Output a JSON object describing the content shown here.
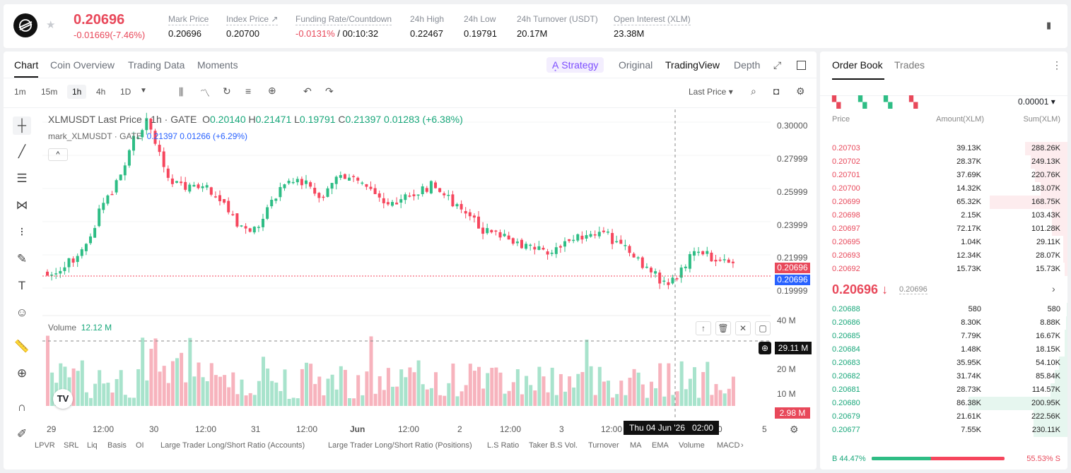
{
  "header": {
    "price": "0.20696",
    "change": "-0.01669(-7.46%)",
    "stats": [
      {
        "label": "Mark Price",
        "value": "0.20696"
      },
      {
        "label": "Index Price ↗",
        "value": "0.20700"
      },
      {
        "label": "Funding Rate/Countdown",
        "value": "-0.0131%",
        "value2": " / 00:10:32"
      },
      {
        "label": "24h High",
        "value": "0.22467"
      },
      {
        "label": "24h Low",
        "value": "0.19791"
      },
      {
        "label": "24h Turnover (USDT)",
        "value": "20.17M"
      },
      {
        "label": "Open Interest (XLM)",
        "value": "23.38M"
      }
    ]
  },
  "chart_tabs": [
    "Chart",
    "Coin Overview",
    "Trading Data",
    "Moments"
  ],
  "view_tabs": {
    "strategy": "A͙ Strategy",
    "original": "Original",
    "tradingview": "TradingView",
    "depth": "Depth"
  },
  "timeframes": [
    "1m",
    "15m",
    "1h",
    "4h",
    "1D"
  ],
  "price_select": "Last Price ▾",
  "legend": {
    "symbol": "XLMUSDT Last Price · 1h · GATE",
    "o": "O",
    "ov": "0.20140",
    "h": "H",
    "hv": "0.21471",
    "l": "L",
    "lv": "0.19791",
    "c": "C",
    "cv": "0.21397",
    "chg": "0.01283 (+6.38%)",
    "mark": "mark_XLMUSDT · GATE",
    "mark_vals": "0.21397  0.01266 (+6.29%)"
  },
  "volume": {
    "label": "Volume",
    "value": "12.12 M"
  },
  "price_axis": [
    "0.30000",
    "0.27999",
    "0.25999",
    "0.23999",
    "0.21999",
    "0.19999"
  ],
  "volume_axis": [
    "40 M",
    "20 M",
    "10 M"
  ],
  "tags": {
    "last": "0.20696",
    "mark": "0.20696",
    "vol_cross": "29.11 M",
    "vol_last": "2.98 M"
  },
  "crosshair_time": "Thu 04 Jun '26   02:00",
  "x_axis": [
    "29",
    "12:00",
    "30",
    "12:00",
    "31",
    "12:00",
    "Jun",
    "12:00",
    "2",
    "12:00",
    "3",
    "12:00",
    "0",
    "5"
  ],
  "indicators": [
    "LPVR",
    "SRL",
    "Liq",
    "Basis",
    "OI",
    "Large Trader Long/Short Ratio (Accounts)",
    "Large Trader Long/Short Ratio (Positions)",
    "L.S Ratio",
    "Taker B.S Vol.",
    "Turnover",
    "MA",
    "EMA",
    "Volume",
    "MACD"
  ],
  "orderbook": {
    "tabs": [
      "Order Book",
      "Trades"
    ],
    "precision": "0.00001 ▾",
    "headers": [
      "Price",
      "Amount(XLM)",
      "Sum(XLM)"
    ],
    "asks": [
      [
        "0.20703",
        "39.13K",
        "288.26K",
        0.3
      ],
      [
        "0.20702",
        "28.37K",
        "249.13K",
        0.26
      ],
      [
        "0.20701",
        "37.69K",
        "220.76K",
        0.23
      ],
      [
        "0.20700",
        "14.32K",
        "183.07K",
        0.19
      ],
      [
        "0.20699",
        "65.32K",
        "168.75K",
        0.55
      ],
      [
        "0.20698",
        "2.15K",
        "103.43K",
        0.11
      ],
      [
        "0.20697",
        "72.17K",
        "101.28K",
        0.11
      ],
      [
        "0.20695",
        "1.04K",
        "29.11K",
        0.03
      ],
      [
        "0.20693",
        "12.34K",
        "28.07K",
        0.03
      ],
      [
        "0.20692",
        "15.73K",
        "15.73K",
        0.02
      ]
    ],
    "mid": "0.20696 ↓",
    "mid_mark": "0.20696",
    "bids": [
      [
        "0.20688",
        "580",
        "580",
        0.005
      ],
      [
        "0.20686",
        "8.30K",
        "8.88K",
        0.01
      ],
      [
        "0.20685",
        "7.79K",
        "16.67K",
        0.02
      ],
      [
        "0.20684",
        "1.48K",
        "18.15K",
        0.02
      ],
      [
        "0.20683",
        "35.95K",
        "54.10K",
        0.06
      ],
      [
        "0.20682",
        "31.74K",
        "85.84K",
        0.09
      ],
      [
        "0.20681",
        "28.73K",
        "114.57K",
        0.12
      ],
      [
        "0.20680",
        "86.38K",
        "200.95K",
        0.7
      ],
      [
        "0.20679",
        "21.61K",
        "222.56K",
        0.24
      ],
      [
        "0.20677",
        "7.55K",
        "230.11K",
        0.24
      ]
    ],
    "buy_ratio": "B 44.47%",
    "sell_ratio": "55.53% S",
    "buy_frac": 0.4447
  },
  "colors": {
    "up": "#2ebd85",
    "down": "#f6465d",
    "accent": "#7c4dff"
  }
}
